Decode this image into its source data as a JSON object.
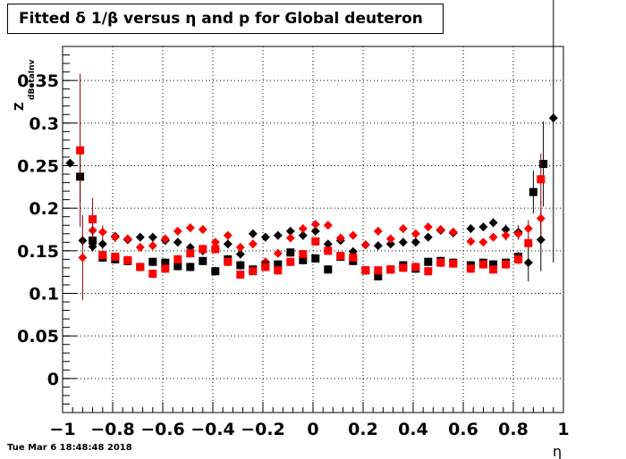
{
  "title": "Fitted δ 1/β versus η and p for Global deuteron",
  "timestamp": "Tue Mar  6 18:48:48 2018",
  "colors": {
    "black_series": "#000000",
    "red_series": "#ff0000",
    "red_errorbar": "#8b0000",
    "grid": "#000000"
  },
  "chart_data": {
    "type": "scatter",
    "title": "Fitted δ 1/β versus η and p for Global deuteron",
    "xlabel": "η",
    "ylabel": "Z",
    "ylabel_subscript": "dBetaInv",
    "xlim": [
      -1,
      1
    ],
    "ylim": [
      -0.04,
      0.39
    ],
    "grid": true,
    "x_ticks": [
      -1,
      -0.8,
      -0.6,
      -0.4,
      -0.2,
      0,
      0.2,
      0.4,
      0.6,
      0.8,
      1
    ],
    "x_tick_labels": [
      "−1",
      "−0.8",
      "−0.6",
      "−0.4",
      "−0.2",
      "0",
      "0.2",
      "0.4",
      "0.6",
      "0.8",
      "1"
    ],
    "y_ticks": [
      0,
      0.05,
      0.1,
      0.15,
      0.2,
      0.25,
      0.3,
      0.35
    ],
    "y_tick_labels": [
      "0",
      "0.05",
      "0.1",
      "0.15",
      "0.2",
      "0.25",
      "0.3",
      "0.35"
    ],
    "series": [
      {
        "marker": "diamond",
        "color": "#000000",
        "points": [
          [
            -0.97,
            0.253,
            0.0
          ],
          [
            -0.92,
            0.162,
            0.006
          ],
          [
            -0.88,
            0.155,
            0.006
          ],
          [
            -0.84,
            0.158,
            0.006
          ],
          [
            -0.79,
            0.167,
            0.005
          ],
          [
            -0.74,
            0.163,
            0.005
          ],
          [
            -0.69,
            0.166,
            0.005
          ],
          [
            -0.64,
            0.166,
            0.005
          ],
          [
            -0.59,
            0.162,
            0.005
          ],
          [
            -0.54,
            0.16,
            0.005
          ],
          [
            -0.49,
            0.154,
            0.005
          ],
          [
            -0.44,
            0.15,
            0.005
          ],
          [
            -0.39,
            0.152,
            0.005
          ],
          [
            -0.34,
            0.158,
            0.005
          ],
          [
            -0.29,
            0.146,
            0.005
          ],
          [
            -0.24,
            0.17,
            0.005
          ],
          [
            -0.19,
            0.166,
            0.005
          ],
          [
            -0.14,
            0.168,
            0.005
          ],
          [
            -0.09,
            0.173,
            0.005
          ],
          [
            -0.04,
            0.168,
            0.005
          ],
          [
            0.01,
            0.173,
            0.005
          ],
          [
            0.06,
            0.158,
            0.005
          ],
          [
            0.11,
            0.162,
            0.005
          ],
          [
            0.16,
            0.149,
            0.005
          ],
          [
            0.21,
            0.157,
            0.005
          ],
          [
            0.26,
            0.156,
            0.005
          ],
          [
            0.31,
            0.158,
            0.005
          ],
          [
            0.36,
            0.16,
            0.005
          ],
          [
            0.41,
            0.16,
            0.005
          ],
          [
            0.46,
            0.166,
            0.005
          ],
          [
            0.51,
            0.174,
            0.005
          ],
          [
            0.56,
            0.171,
            0.005
          ],
          [
            0.63,
            0.176,
            0.005
          ],
          [
            0.68,
            0.178,
            0.005
          ],
          [
            0.72,
            0.183,
            0.005
          ],
          [
            0.77,
            0.175,
            0.006
          ],
          [
            0.82,
            0.172,
            0.008
          ],
          [
            0.86,
            0.136,
            0.022
          ],
          [
            0.91,
            0.163,
            0.037
          ],
          [
            0.96,
            0.306,
            0.17
          ]
        ]
      },
      {
        "marker": "diamond",
        "color": "#ff0000",
        "points": [
          [
            -0.92,
            0.142,
            0.05
          ],
          [
            -0.88,
            0.174,
            0.01
          ],
          [
            -0.84,
            0.172,
            0.008
          ],
          [
            -0.79,
            0.166,
            0.006
          ],
          [
            -0.74,
            0.164,
            0.005
          ],
          [
            -0.69,
            0.154,
            0.005
          ],
          [
            -0.64,
            0.156,
            0.005
          ],
          [
            -0.59,
            0.164,
            0.005
          ],
          [
            -0.54,
            0.173,
            0.005
          ],
          [
            -0.49,
            0.177,
            0.005
          ],
          [
            -0.44,
            0.175,
            0.005
          ],
          [
            -0.39,
            0.16,
            0.005
          ],
          [
            -0.34,
            0.168,
            0.005
          ],
          [
            -0.29,
            0.154,
            0.005
          ],
          [
            -0.24,
            0.158,
            0.005
          ],
          [
            -0.19,
            0.137,
            0.005
          ],
          [
            -0.14,
            0.147,
            0.005
          ],
          [
            -0.09,
            0.165,
            0.005
          ],
          [
            -0.04,
            0.176,
            0.005
          ],
          [
            0.01,
            0.181,
            0.005
          ],
          [
            0.06,
            0.18,
            0.005
          ],
          [
            0.11,
            0.165,
            0.005
          ],
          [
            0.16,
            0.168,
            0.005
          ],
          [
            0.21,
            0.157,
            0.005
          ],
          [
            0.26,
            0.173,
            0.005
          ],
          [
            0.31,
            0.164,
            0.005
          ],
          [
            0.36,
            0.176,
            0.005
          ],
          [
            0.41,
            0.17,
            0.005
          ],
          [
            0.46,
            0.178,
            0.005
          ],
          [
            0.51,
            0.175,
            0.005
          ],
          [
            0.56,
            0.172,
            0.005
          ],
          [
            0.63,
            0.161,
            0.005
          ],
          [
            0.68,
            0.16,
            0.005
          ],
          [
            0.72,
            0.166,
            0.005
          ],
          [
            0.77,
            0.168,
            0.006
          ],
          [
            0.82,
            0.17,
            0.007
          ],
          [
            0.86,
            0.176,
            0.01
          ],
          [
            0.91,
            0.188,
            0.02
          ]
        ]
      },
      {
        "marker": "square",
        "color": "#000000",
        "points": [
          [
            -0.93,
            0.237,
            0.03
          ],
          [
            -0.88,
            0.162,
            0.006
          ],
          [
            -0.84,
            0.142,
            0.005
          ],
          [
            -0.79,
            0.14,
            0.005
          ],
          [
            -0.74,
            0.138,
            0.005
          ],
          [
            -0.69,
            0.131,
            0.005
          ],
          [
            -0.64,
            0.137,
            0.005
          ],
          [
            -0.59,
            0.136,
            0.005
          ],
          [
            -0.54,
            0.132,
            0.005
          ],
          [
            -0.49,
            0.131,
            0.005
          ],
          [
            -0.44,
            0.138,
            0.005
          ],
          [
            -0.39,
            0.126,
            0.005
          ],
          [
            -0.34,
            0.14,
            0.005
          ],
          [
            -0.29,
            0.133,
            0.005
          ],
          [
            -0.24,
            0.128,
            0.005
          ],
          [
            -0.19,
            0.133,
            0.005
          ],
          [
            -0.14,
            0.134,
            0.005
          ],
          [
            -0.09,
            0.148,
            0.005
          ],
          [
            -0.04,
            0.139,
            0.005
          ],
          [
            0.01,
            0.141,
            0.005
          ],
          [
            0.06,
            0.128,
            0.005
          ],
          [
            0.11,
            0.143,
            0.005
          ],
          [
            0.16,
            0.138,
            0.005
          ],
          [
            0.21,
            0.127,
            0.005
          ],
          [
            0.26,
            0.12,
            0.005
          ],
          [
            0.31,
            0.128,
            0.005
          ],
          [
            0.36,
            0.133,
            0.005
          ],
          [
            0.41,
            0.129,
            0.005
          ],
          [
            0.46,
            0.137,
            0.005
          ],
          [
            0.51,
            0.138,
            0.005
          ],
          [
            0.56,
            0.136,
            0.005
          ],
          [
            0.63,
            0.133,
            0.005
          ],
          [
            0.68,
            0.136,
            0.005
          ],
          [
            0.72,
            0.134,
            0.005
          ],
          [
            0.77,
            0.136,
            0.005
          ],
          [
            0.82,
            0.143,
            0.006
          ],
          [
            0.88,
            0.219,
            0.025
          ],
          [
            0.92,
            0.252,
            0.05
          ]
        ]
      },
      {
        "marker": "square",
        "color": "#ff0000",
        "points": [
          [
            -0.93,
            0.268,
            0.09
          ],
          [
            -0.88,
            0.187,
            0.025
          ],
          [
            -0.84,
            0.145,
            0.006
          ],
          [
            -0.79,
            0.143,
            0.005
          ],
          [
            -0.74,
            0.139,
            0.005
          ],
          [
            -0.69,
            0.131,
            0.005
          ],
          [
            -0.64,
            0.123,
            0.005
          ],
          [
            -0.59,
            0.129,
            0.005
          ],
          [
            -0.54,
            0.14,
            0.005
          ],
          [
            -0.49,
            0.147,
            0.005
          ],
          [
            -0.44,
            0.152,
            0.005
          ],
          [
            -0.39,
            0.152,
            0.005
          ],
          [
            -0.34,
            0.137,
            0.005
          ],
          [
            -0.29,
            0.122,
            0.005
          ],
          [
            -0.24,
            0.126,
            0.005
          ],
          [
            -0.19,
            0.131,
            0.005
          ],
          [
            -0.14,
            0.127,
            0.005
          ],
          [
            -0.09,
            0.137,
            0.005
          ],
          [
            -0.04,
            0.146,
            0.005
          ],
          [
            0.01,
            0.161,
            0.005
          ],
          [
            0.06,
            0.15,
            0.005
          ],
          [
            0.11,
            0.144,
            0.005
          ],
          [
            0.16,
            0.142,
            0.005
          ],
          [
            0.21,
            0.127,
            0.005
          ],
          [
            0.26,
            0.127,
            0.005
          ],
          [
            0.31,
            0.128,
            0.005
          ],
          [
            0.36,
            0.13,
            0.005
          ],
          [
            0.41,
            0.131,
            0.005
          ],
          [
            0.46,
            0.126,
            0.005
          ],
          [
            0.51,
            0.136,
            0.005
          ],
          [
            0.56,
            0.135,
            0.005
          ],
          [
            0.63,
            0.129,
            0.005
          ],
          [
            0.68,
            0.134,
            0.005
          ],
          [
            0.72,
            0.128,
            0.005
          ],
          [
            0.77,
            0.134,
            0.005
          ],
          [
            0.82,
            0.14,
            0.006
          ],
          [
            0.86,
            0.159,
            0.008
          ],
          [
            0.91,
            0.234,
            0.03
          ]
        ]
      }
    ]
  }
}
